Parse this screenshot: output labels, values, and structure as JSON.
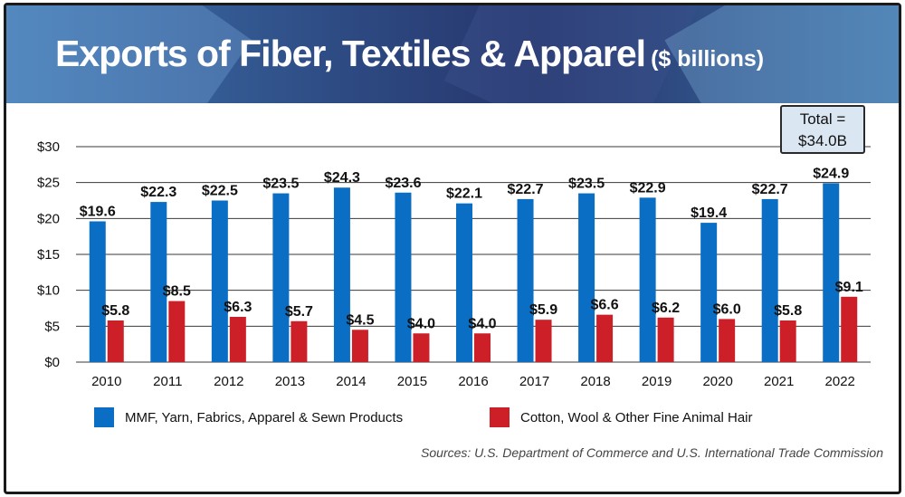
{
  "header": {
    "title": "Exports of Fiber, Textiles & Apparel",
    "unit": "($ billions)"
  },
  "total_box": {
    "line1": "Total =",
    "line2": "$34.0B"
  },
  "source": "Sources: U.S. Department of Commerce and U.S. International Trade Commission",
  "colors": {
    "series1": "#0a6ec4",
    "series2": "#cc1f28",
    "grid": "#3a3a3a"
  },
  "chart_data": {
    "type": "bar",
    "categories": [
      "2010",
      "2011",
      "2012",
      "2013",
      "2014",
      "2015",
      "2016",
      "2017",
      "2018",
      "2019",
      "2020",
      "2021",
      "2022"
    ],
    "series": [
      {
        "name": "MMF, Yarn, Fabrics, Apparel & Sewn Products",
        "values": [
          19.6,
          22.3,
          22.5,
          23.5,
          24.3,
          23.6,
          22.1,
          22.7,
          23.5,
          22.9,
          19.4,
          22.7,
          24.9
        ]
      },
      {
        "name": "Cotton, Wool & Other Fine Animal Hair",
        "values": [
          5.8,
          8.5,
          6.3,
          5.7,
          4.5,
          4.0,
          4.0,
          5.9,
          6.6,
          6.2,
          6.0,
          5.8,
          9.1
        ]
      }
    ],
    "ylim": [
      0,
      30
    ],
    "yticks": [
      "$0",
      "$5",
      "$10",
      "$15",
      "$20",
      "$25",
      "$30"
    ],
    "value_prefix": "$",
    "grid": true,
    "legend_position": "bottom"
  }
}
